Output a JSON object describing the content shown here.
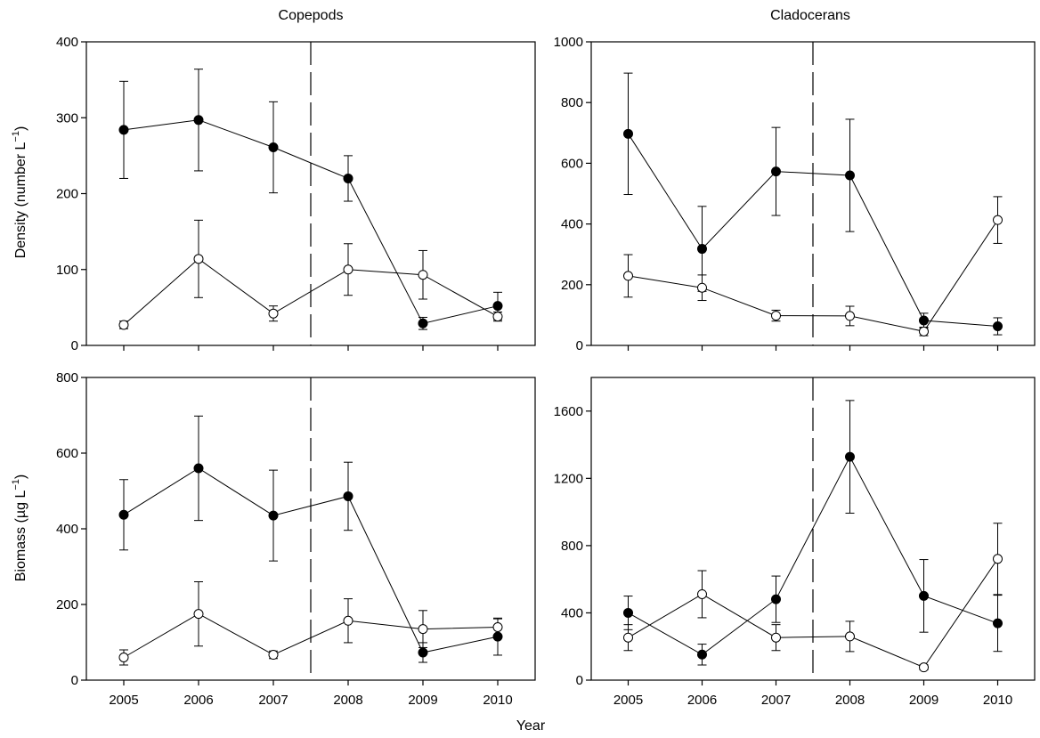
{
  "figure": {
    "column_titles": [
      "Copepods",
      "Cladocerans"
    ],
    "row_labels": {
      "density_prefix": "Density (number L",
      "density_sup": "−1",
      "density_suffix": ")",
      "biomass_prefix": "Biomass (µg L",
      "biomass_sup": "−1",
      "biomass_suffix": ")"
    },
    "xlabel": "Year"
  },
  "chart_data": [
    {
      "type": "line",
      "panel": "copepods-density",
      "title": "Copepods",
      "ylabel": "Density (number L−1)",
      "xlabel": "",
      "x": [
        2005,
        2006,
        2007,
        2008,
        2009,
        2010
      ],
      "xlim": [
        2004.5,
        2010.5
      ],
      "ylim": [
        0,
        400
      ],
      "yticks": [
        0,
        100,
        200,
        300,
        400
      ],
      "xticklabels": [],
      "divider_x": 2007.5,
      "series": [
        {
          "marker": "filled",
          "values": [
            284,
            297,
            261,
            220,
            29,
            52
          ],
          "err": [
            64,
            67,
            60,
            30,
            8,
            18
          ]
        },
        {
          "marker": "open",
          "values": [
            27,
            114,
            42,
            100,
            93,
            38
          ],
          "err": [
            5,
            51,
            10,
            34,
            32,
            6
          ]
        }
      ]
    },
    {
      "type": "line",
      "panel": "cladocerans-density",
      "title": "Cladocerans",
      "ylabel": "",
      "xlabel": "",
      "x": [
        2005,
        2006,
        2007,
        2008,
        2009,
        2010
      ],
      "xlim": [
        2004.5,
        2010.5
      ],
      "ylim": [
        0,
        1000
      ],
      "yticks": [
        0,
        200,
        400,
        600,
        800,
        1000
      ],
      "xticklabels": [],
      "divider_x": 2007.5,
      "series": [
        {
          "marker": "filled",
          "values": [
            697,
            318,
            573,
            560,
            82,
            63
          ],
          "err": [
            200,
            140,
            145,
            185,
            24,
            28
          ]
        },
        {
          "marker": "open",
          "values": [
            229,
            190,
            98,
            97,
            46,
            413
          ],
          "err": [
            70,
            42,
            18,
            32,
            14,
            77
          ]
        }
      ]
    },
    {
      "type": "line",
      "panel": "copepods-biomass",
      "title": "",
      "ylabel": "Biomass (µg L−1)",
      "xlabel": "",
      "x": [
        2005,
        2006,
        2007,
        2008,
        2009,
        2010
      ],
      "xlim": [
        2004.5,
        2010.5
      ],
      "ylim": [
        0,
        800
      ],
      "yticks": [
        0,
        200,
        400,
        600,
        800
      ],
      "xticklabels": [
        "2005",
        "2006",
        "2007",
        "2008",
        "2009",
        "2010"
      ],
      "divider_x": 2007.5,
      "series": [
        {
          "marker": "filled",
          "values": [
            437,
            560,
            435,
            486,
            73,
            115
          ],
          "err": [
            93,
            138,
            120,
            90,
            26,
            49
          ]
        },
        {
          "marker": "open",
          "values": [
            60,
            175,
            67,
            157,
            135,
            140
          ],
          "err": [
            20,
            85,
            10,
            58,
            49,
            22
          ]
        }
      ]
    },
    {
      "type": "line",
      "panel": "cladocerans-biomass",
      "title": "",
      "ylabel": "",
      "xlabel": "",
      "x": [
        2005,
        2006,
        2007,
        2008,
        2009,
        2010
      ],
      "xlim": [
        2004.5,
        2010.5
      ],
      "ylim": [
        0,
        1800
      ],
      "yticks": [
        0,
        400,
        800,
        1200,
        1600
      ],
      "xticklabels": [
        "2005",
        "2006",
        "2007",
        "2008",
        "2009",
        "2010"
      ],
      "divider_x": 2007.5,
      "series": [
        {
          "marker": "filled",
          "values": [
            400,
            152,
            481,
            1328,
            501,
            338
          ],
          "err": [
            100,
            62,
            138,
            335,
            216,
            167
          ]
        },
        {
          "marker": "open",
          "values": [
            253,
            511,
            253,
            260,
            76,
            721
          ],
          "err": [
            77,
            140,
            77,
            90,
            15,
            212
          ]
        }
      ]
    }
  ]
}
